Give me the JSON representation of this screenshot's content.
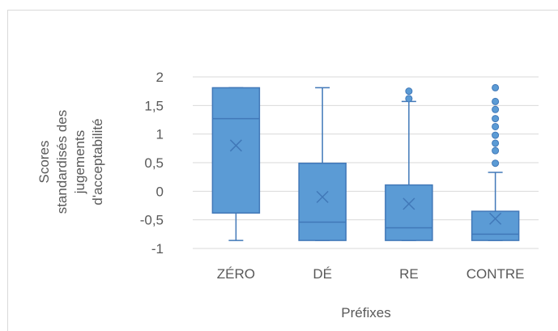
{
  "chart_data": {
    "type": "box",
    "xlabel": "Préfixes",
    "ylabel_lines": [
      "Scores",
      "standardisés des",
      "jugements",
      "d'acceptabilité"
    ],
    "ylim": [
      -1,
      2
    ],
    "ytick_values": [
      -1,
      -0.5,
      0,
      0.5,
      1,
      1.5,
      2
    ],
    "ytick_labels": [
      "-1",
      "-0,5",
      "0",
      "0,5",
      "1",
      "1,5",
      "2"
    ],
    "grid": true,
    "legend": "none",
    "colors": {
      "fill": "#5b9bd5",
      "stroke": "#4178b8",
      "grid": "#d9d9d9"
    },
    "categories": [
      "ZÉRO",
      "DÉ",
      "RE",
      "CONTRE"
    ],
    "boxes": [
      {
        "whisker_low": -0.86,
        "q1": -0.38,
        "median": 1.27,
        "q3": 1.81,
        "whisker_high": 1.81,
        "mean": 0.8,
        "outliers": []
      },
      {
        "whisker_low": -0.86,
        "q1": -0.86,
        "median": -0.54,
        "q3": 0.49,
        "whisker_high": 1.81,
        "mean": -0.1,
        "outliers": []
      },
      {
        "whisker_low": -0.86,
        "q1": -0.86,
        "median": -0.64,
        "q3": 0.11,
        "whisker_high": 1.57,
        "mean": -0.22,
        "outliers": [
          1.62,
          1.75
        ]
      },
      {
        "whisker_low": -0.86,
        "q1": -0.86,
        "median": -0.75,
        "q3": -0.35,
        "whisker_high": 0.33,
        "mean": -0.48,
        "outliers": [
          0.49,
          0.71,
          0.84,
          0.98,
          1.13,
          1.27,
          1.43,
          1.57,
          1.81
        ]
      }
    ]
  }
}
